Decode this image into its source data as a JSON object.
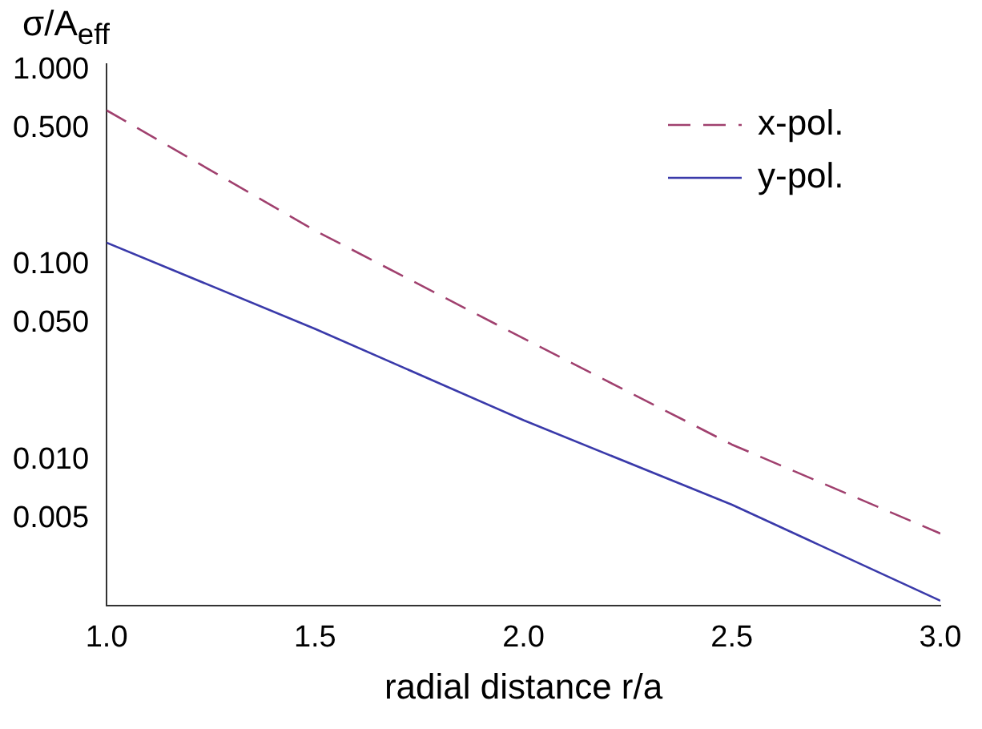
{
  "chart_data": {
    "type": "line",
    "ylabel": "σ/A$_{eff}$",
    "xlabel": "radial distance r/a",
    "x": [
      1,
      1.5,
      2,
      2.5,
      3
    ],
    "series": [
      {
        "name": "x-pol.",
        "color": "#a0406e",
        "line_style": "dashed",
        "values": [
          0.62,
          0.15,
          0.042,
          0.012,
          0.0042
        ]
      },
      {
        "name": "y-pol.",
        "color": "#3a3aaa",
        "line_style": "solid",
        "values": [
          0.13,
          0.047,
          0.016,
          0.0059,
          0.0019
        ]
      }
    ],
    "log": "y",
    "xlim": [
      1,
      3
    ],
    "ylim": [
      0.0018,
      1.07
    ],
    "xticks": [
      {
        "value": 1,
        "label": "1.0"
      },
      {
        "value": 1.5,
        "label": "1.5"
      },
      {
        "value": 2,
        "label": "2.0"
      },
      {
        "value": 2.5,
        "label": "2.5"
      },
      {
        "value": 3,
        "label": "3.0"
      }
    ],
    "yticks": [
      {
        "value": 0.005,
        "label": "0.005"
      },
      {
        "value": 0.01,
        "label": "0.010"
      },
      {
        "value": 0.05,
        "label": "0.050"
      },
      {
        "value": 0.1,
        "label": "0.100"
      },
      {
        "value": 0.5,
        "label": "0.500"
      },
      {
        "value": 1,
        "label": "1.000"
      }
    ],
    "grid": false,
    "legend": "top right",
    "marker": "none"
  }
}
